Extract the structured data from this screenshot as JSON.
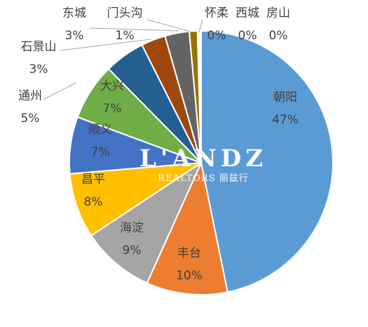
{
  "chart_data": {
    "type": "pie",
    "slices": [
      {
        "label": "朝阳",
        "value": 47,
        "pct": "47%",
        "color": "#5B9BD5"
      },
      {
        "label": "丰台",
        "value": 10,
        "pct": "10%",
        "color": "#ED7D31"
      },
      {
        "label": "海淀",
        "value": 9,
        "pct": "9%",
        "color": "#A5A5A5"
      },
      {
        "label": "昌平",
        "value": 8,
        "pct": "8%",
        "color": "#FFC000"
      },
      {
        "label": "顺义",
        "value": 7,
        "pct": "7%",
        "color": "#4472C4"
      },
      {
        "label": "大兴",
        "value": 7,
        "pct": "7%",
        "color": "#70AD47"
      },
      {
        "label": "通州",
        "value": 5,
        "pct": "5%",
        "color": "#255E91"
      },
      {
        "label": "石景山",
        "value": 3,
        "pct": "3%",
        "color": "#9E480E"
      },
      {
        "label": "东城",
        "value": 3,
        "pct": "3%",
        "color": "#636363"
      },
      {
        "label": "门头沟",
        "value": 1,
        "pct": "1%",
        "color": "#997300"
      },
      {
        "label": "怀柔",
        "value": 0.15,
        "pct": "0%",
        "color": "#264478"
      },
      {
        "label": "西城",
        "value": 0.15,
        "pct": "0%",
        "color": "#43682B"
      },
      {
        "label": "房山",
        "value": 0.15,
        "pct": "0%",
        "color": "#698ED0"
      }
    ]
  },
  "watermark": {
    "main": "L'ANDZ",
    "sub": "REALTORS 丽兹行"
  }
}
